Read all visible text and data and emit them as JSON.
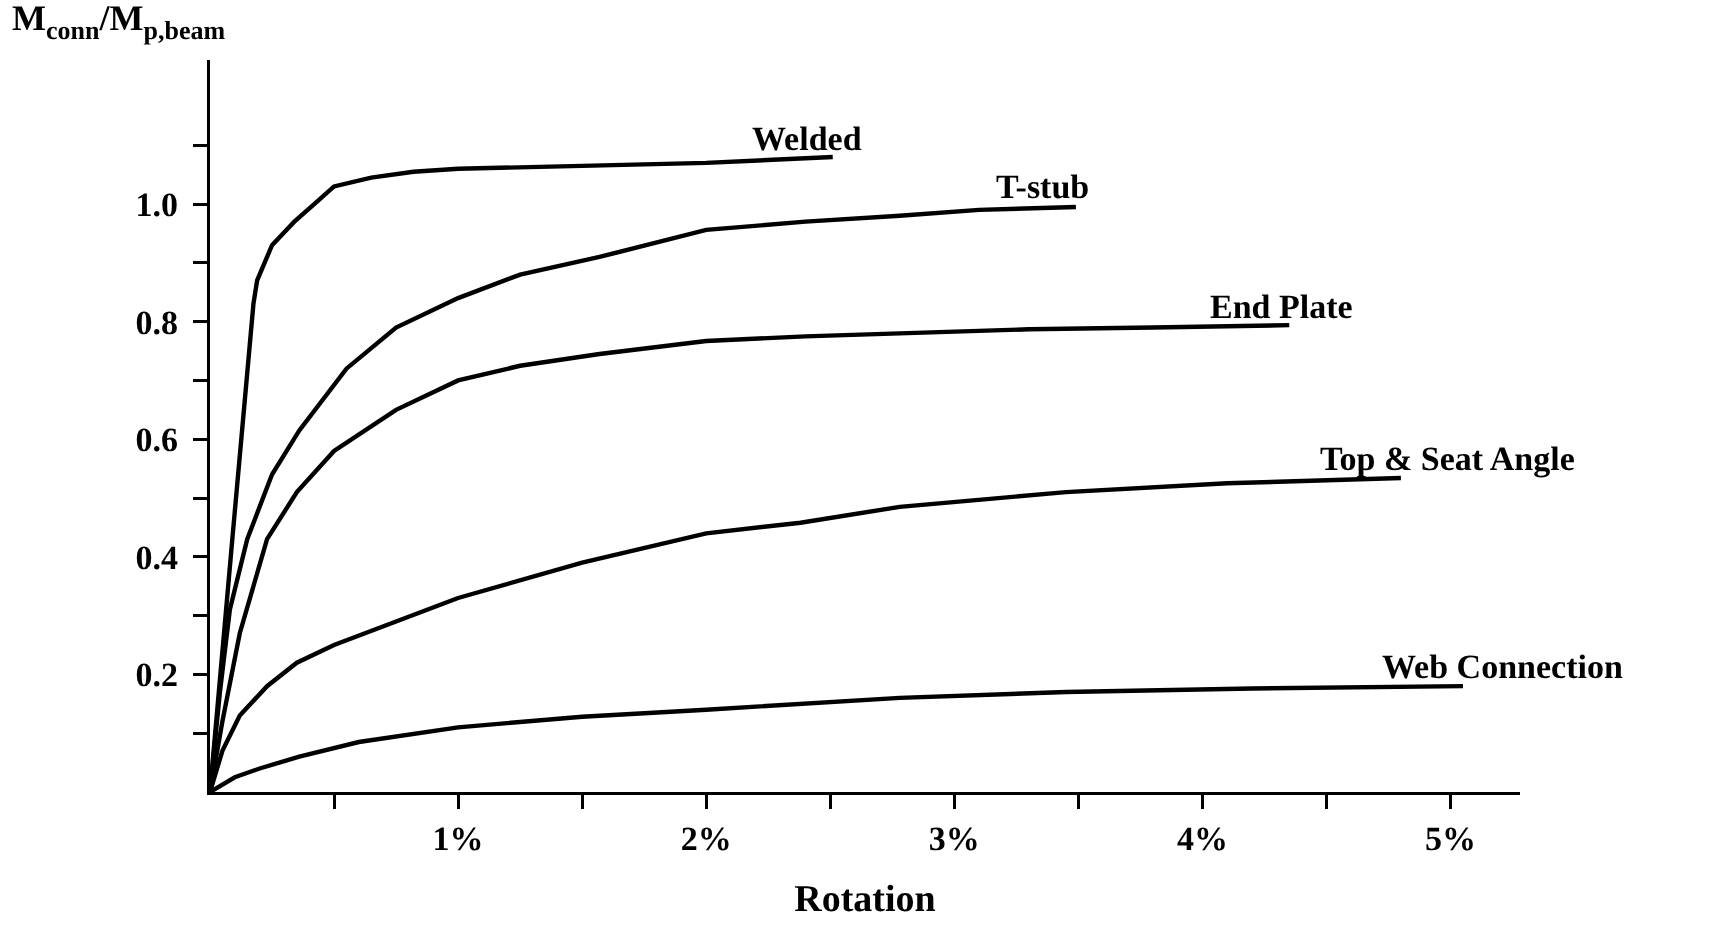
{
  "chart_data": {
    "type": "line",
    "xlabel": "Rotation",
    "ylabel": "M$_{conn}$/M$_{p,beam}$",
    "xlim": [
      0,
      5.28
    ],
    "ylim": [
      0,
      1.245
    ],
    "xticks": [
      {
        "value": 0.5,
        "label": null
      },
      {
        "value": 1,
        "label": "1%"
      },
      {
        "value": 1.5,
        "label": null
      },
      {
        "value": 2,
        "label": "2%"
      },
      {
        "value": 2.5,
        "label": null
      },
      {
        "value": 3,
        "label": "3%"
      },
      {
        "value": 3.5,
        "label": null
      },
      {
        "value": 4,
        "label": "4%"
      },
      {
        "value": 4.5,
        "label": null
      },
      {
        "value": 5,
        "label": "5%"
      }
    ],
    "yticks": [
      {
        "value": 0.1,
        "label": null
      },
      {
        "value": 0.2,
        "label": "0.2"
      },
      {
        "value": 0.3,
        "label": null
      },
      {
        "value": 0.4,
        "label": "0.4"
      },
      {
        "value": 0.5,
        "label": null
      },
      {
        "value": 0.6,
        "label": "0.6"
      },
      {
        "value": 0.7,
        "label": null
      },
      {
        "value": 0.8,
        "label": "0.8"
      },
      {
        "value": 0.9,
        "label": null
      },
      {
        "value": 1.0,
        "label": "1.0"
      },
      {
        "value": 1.1,
        "label": null
      }
    ],
    "grid": false,
    "legend": false,
    "marker": "none",
    "line_style": "solid",
    "series": [
      {
        "name": "Welded",
        "color": "#000000",
        "x": [
          0,
          0.09,
          0.175,
          0.19,
          0.25,
          0.34,
          0.42,
          0.5,
          0.65,
          0.82,
          1,
          1.5,
          2,
          2.51
        ],
        "values": [
          0,
          0.43,
          0.83,
          0.87,
          0.93,
          0.97,
          1.0,
          1.03,
          1.045,
          1.055,
          1.06,
          1.065,
          1.07,
          1.08
        ]
      },
      {
        "name": "T-stub",
        "color": "#000000",
        "x": [
          0,
          0.04,
          0.08,
          0.15,
          0.25,
          0.36,
          0.55,
          0.75,
          1,
          1.25,
          1.57,
          2,
          2.4,
          2.78,
          3.1,
          3.49
        ],
        "values": [
          0,
          0.17,
          0.31,
          0.43,
          0.54,
          0.615,
          0.72,
          0.79,
          0.84,
          0.88,
          0.91,
          0.956,
          0.97,
          0.98,
          0.99,
          0.995
        ]
      },
      {
        "name": "End Plate",
        "color": "#000000",
        "x": [
          0,
          0.05,
          0.12,
          0.23,
          0.35,
          0.5,
          0.75,
          1,
          1.25,
          1.57,
          2,
          2.4,
          2.78,
          3.3,
          3.8,
          4.35
        ],
        "values": [
          0,
          0.12,
          0.27,
          0.43,
          0.51,
          0.58,
          0.65,
          0.7,
          0.725,
          0.745,
          0.767,
          0.775,
          0.78,
          0.787,
          0.79,
          0.794
        ]
      },
      {
        "name": "Top & Seat Angle",
        "color": "#000000",
        "x": [
          0,
          0.05,
          0.12,
          0.23,
          0.35,
          0.5,
          0.75,
          1,
          1.5,
          2,
          2.38,
          2.78,
          3.45,
          4.1,
          4.8
        ],
        "values": [
          0,
          0.07,
          0.13,
          0.18,
          0.22,
          0.25,
          0.29,
          0.33,
          0.39,
          0.44,
          0.458,
          0.485,
          0.51,
          0.525,
          0.534
        ]
      },
      {
        "name": "Web Connection",
        "color": "#000000",
        "x": [
          0,
          0.1,
          0.2,
          0.36,
          0.6,
          1,
          1.5,
          2,
          2.78,
          3.45,
          4.2,
          5.05
        ],
        "values": [
          0,
          0.025,
          0.04,
          0.06,
          0.085,
          0.11,
          0.128,
          0.14,
          0.16,
          0.17,
          0.176,
          0.18
        ]
      }
    ]
  }
}
